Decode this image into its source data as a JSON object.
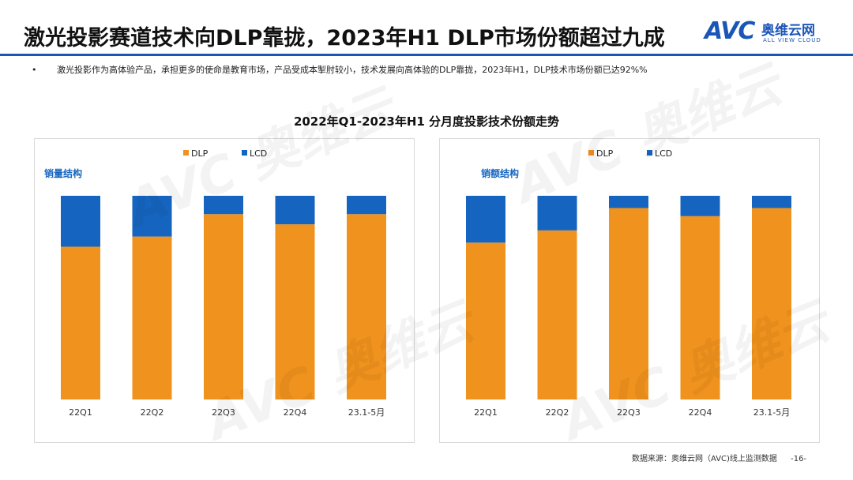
{
  "header": {
    "title": "激光投影赛道技术向DLP靠拢，2023年H1 DLP市场份额超过九成",
    "logo_mark": "AVC",
    "logo_cn": "奥维云网",
    "logo_en": "ALL VIEW CLOUD"
  },
  "bullet": {
    "marker": "•",
    "text": "激光投影作为高体验产品，承担更多的使命是教育市场，产品受成本掣肘较小，技术发展向高体验的DLP靠拢，2023年H1，DLP技术市场份额已达92%%"
  },
  "chart_title": "2022年Q1-2023年H1 分月度投影技术份额走势",
  "footer": {
    "source": "数据来源：奥维云网（AVC)线上监测数据",
    "page": "-16-"
  },
  "colors": {
    "dlp": "#f0921e",
    "lcd": "#1565c0",
    "accent": "#1a56b8",
    "label": "#1565c0"
  },
  "chart_data": [
    {
      "type": "bar",
      "stacked": true,
      "percent": true,
      "subtitle": "销量结构",
      "categories": [
        "22Q1",
        "22Q2",
        "22Q3",
        "22Q4",
        "23.1-5月"
      ],
      "series": [
        {
          "name": "DLP",
          "values": [
            75,
            80,
            91,
            86,
            91
          ]
        },
        {
          "name": "LCD",
          "values": [
            25,
            20,
            9,
            14,
            9
          ]
        }
      ],
      "ylim": [
        0,
        100
      ],
      "legend": "top-center"
    },
    {
      "type": "bar",
      "stacked": true,
      "percent": true,
      "subtitle": "销额结构",
      "categories": [
        "22Q1",
        "22Q2",
        "22Q3",
        "22Q4",
        "23.1-5月"
      ],
      "series": [
        {
          "name": "DLP",
          "values": [
            77,
            83,
            94,
            90,
            94
          ]
        },
        {
          "name": "LCD",
          "values": [
            23,
            17,
            6,
            10,
            6
          ]
        }
      ],
      "ylim": [
        0,
        100
      ],
      "legend": "top-center"
    }
  ]
}
